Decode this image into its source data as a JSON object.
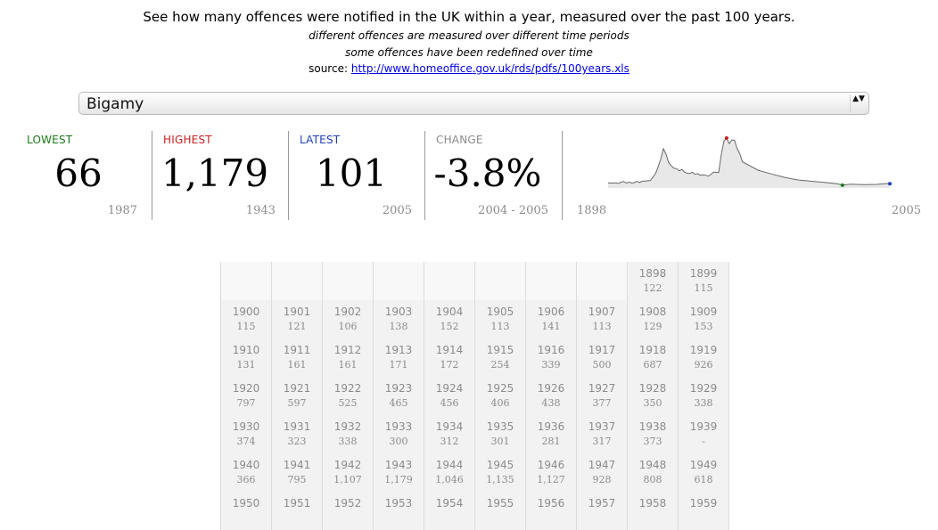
{
  "header": {
    "headline": "See how many offences were notified in the UK within a year, measured over the past 100 years.",
    "note1": "different offences are measured over different time periods",
    "note2": "some offences have been redefined over time",
    "source_label": "source:",
    "source_link": "http://www.homeoffice.gov.uk/rds/pdfs/100years.xls"
  },
  "offence_select": {
    "value": "Bigamy",
    "arrows": "▲▼"
  },
  "stats": {
    "lowest": {
      "label": "LOWEST",
      "value": "66",
      "year": "1987",
      "color": "#1b7a1b"
    },
    "highest": {
      "label": "HIGHEST",
      "value": "1,179",
      "year": "1943",
      "color": "#cc1f1f"
    },
    "latest": {
      "label": "LATEST",
      "value": "101",
      "year": "2005",
      "color": "#1f3fbf"
    },
    "change": {
      "label": "CHANGE",
      "value": "-3.8%",
      "period": "2004 - 2005",
      "color": "#8c8c8c"
    }
  },
  "chart_data": {
    "type": "area",
    "x": [
      1898,
      1899,
      1900,
      1901,
      1902,
      1903,
      1904,
      1905,
      1906,
      1907,
      1908,
      1909,
      1910,
      1911,
      1912,
      1913,
      1914,
      1915,
      1916,
      1917,
      1918,
      1919,
      1920,
      1921,
      1922,
      1923,
      1924,
      1925,
      1926,
      1927,
      1928,
      1929,
      1930,
      1931,
      1932,
      1933,
      1934,
      1935,
      1936,
      1937,
      1938,
      1939,
      1940,
      1941,
      1942,
      1943,
      1944,
      1945,
      1946,
      1947,
      1948,
      1949,
      1955,
      1960,
      1965,
      1970,
      1975,
      1980,
      1985,
      1987,
      1990,
      1995,
      2000,
      2004,
      2005
    ],
    "y": [
      122,
      115,
      115,
      121,
      106,
      138,
      152,
      113,
      141,
      113,
      129,
      153,
      131,
      161,
      161,
      171,
      172,
      254,
      339,
      500,
      687,
      926,
      797,
      597,
      525,
      465,
      456,
      406,
      438,
      377,
      350,
      338,
      374,
      323,
      338,
      300,
      312,
      301,
      281,
      317,
      373,
      null,
      366,
      795,
      1107,
      1179,
      1046,
      1135,
      1127,
      928,
      808,
      618,
      420,
      330,
      250,
      190,
      160,
      130,
      100,
      66,
      90,
      80,
      85,
      105,
      101
    ],
    "xlim": [
      1898,
      2005
    ],
    "ylim": [
      0,
      1179
    ],
    "highlights": {
      "highest": [
        1943,
        1179
      ],
      "lowest": [
        1987,
        66
      ],
      "latest": [
        2005,
        101
      ]
    },
    "colors": {
      "fill": "#e8e8e8",
      "line": "#6a6a6a",
      "highest": "#cc1f1f",
      "lowest": "#1b7a1b",
      "latest": "#1f3fbf"
    },
    "xrange_labels": [
      "1898",
      "2005"
    ]
  },
  "table": {
    "rows": [
      [
        null,
        null,
        null,
        null,
        null,
        null,
        null,
        null,
        {
          "year": "1898",
          "value": "122"
        },
        {
          "year": "1899",
          "value": "115"
        }
      ],
      [
        {
          "year": "1900",
          "value": "115"
        },
        {
          "year": "1901",
          "value": "121"
        },
        {
          "year": "1902",
          "value": "106"
        },
        {
          "year": "1903",
          "value": "138"
        },
        {
          "year": "1904",
          "value": "152"
        },
        {
          "year": "1905",
          "value": "113"
        },
        {
          "year": "1906",
          "value": "141"
        },
        {
          "year": "1907",
          "value": "113"
        },
        {
          "year": "1908",
          "value": "129"
        },
        {
          "year": "1909",
          "value": "153"
        }
      ],
      [
        {
          "year": "1910",
          "value": "131"
        },
        {
          "year": "1911",
          "value": "161"
        },
        {
          "year": "1912",
          "value": "161"
        },
        {
          "year": "1913",
          "value": "171"
        },
        {
          "year": "1914",
          "value": "172"
        },
        {
          "year": "1915",
          "value": "254"
        },
        {
          "year": "1916",
          "value": "339"
        },
        {
          "year": "1917",
          "value": "500"
        },
        {
          "year": "1918",
          "value": "687"
        },
        {
          "year": "1919",
          "value": "926"
        }
      ],
      [
        {
          "year": "1920",
          "value": "797"
        },
        {
          "year": "1921",
          "value": "597"
        },
        {
          "year": "1922",
          "value": "525"
        },
        {
          "year": "1923",
          "value": "465"
        },
        {
          "year": "1924",
          "value": "456"
        },
        {
          "year": "1925",
          "value": "406"
        },
        {
          "year": "1926",
          "value": "438"
        },
        {
          "year": "1927",
          "value": "377"
        },
        {
          "year": "1928",
          "value": "350"
        },
        {
          "year": "1929",
          "value": "338"
        }
      ],
      [
        {
          "year": "1930",
          "value": "374"
        },
        {
          "year": "1931",
          "value": "323"
        },
        {
          "year": "1932",
          "value": "338"
        },
        {
          "year": "1933",
          "value": "300"
        },
        {
          "year": "1934",
          "value": "312"
        },
        {
          "year": "1935",
          "value": "301"
        },
        {
          "year": "1936",
          "value": "281"
        },
        {
          "year": "1937",
          "value": "317"
        },
        {
          "year": "1938",
          "value": "373"
        },
        {
          "year": "1939",
          "value": "-"
        }
      ],
      [
        {
          "year": "1940",
          "value": "366"
        },
        {
          "year": "1941",
          "value": "795"
        },
        {
          "year": "1942",
          "value": "1,107"
        },
        {
          "year": "1943",
          "value": "1,179"
        },
        {
          "year": "1944",
          "value": "1,046"
        },
        {
          "year": "1945",
          "value": "1,135"
        },
        {
          "year": "1946",
          "value": "1,127"
        },
        {
          "year": "1947",
          "value": "928"
        },
        {
          "year": "1948",
          "value": "808"
        },
        {
          "year": "1949",
          "value": "618"
        }
      ],
      [
        {
          "year": "1950",
          "value": ""
        },
        {
          "year": "1951",
          "value": ""
        },
        {
          "year": "1952",
          "value": ""
        },
        {
          "year": "1953",
          "value": ""
        },
        {
          "year": "1954",
          "value": ""
        },
        {
          "year": "1955",
          "value": ""
        },
        {
          "year": "1956",
          "value": ""
        },
        {
          "year": "1957",
          "value": ""
        },
        {
          "year": "1958",
          "value": ""
        },
        {
          "year": "1959",
          "value": ""
        }
      ]
    ]
  }
}
